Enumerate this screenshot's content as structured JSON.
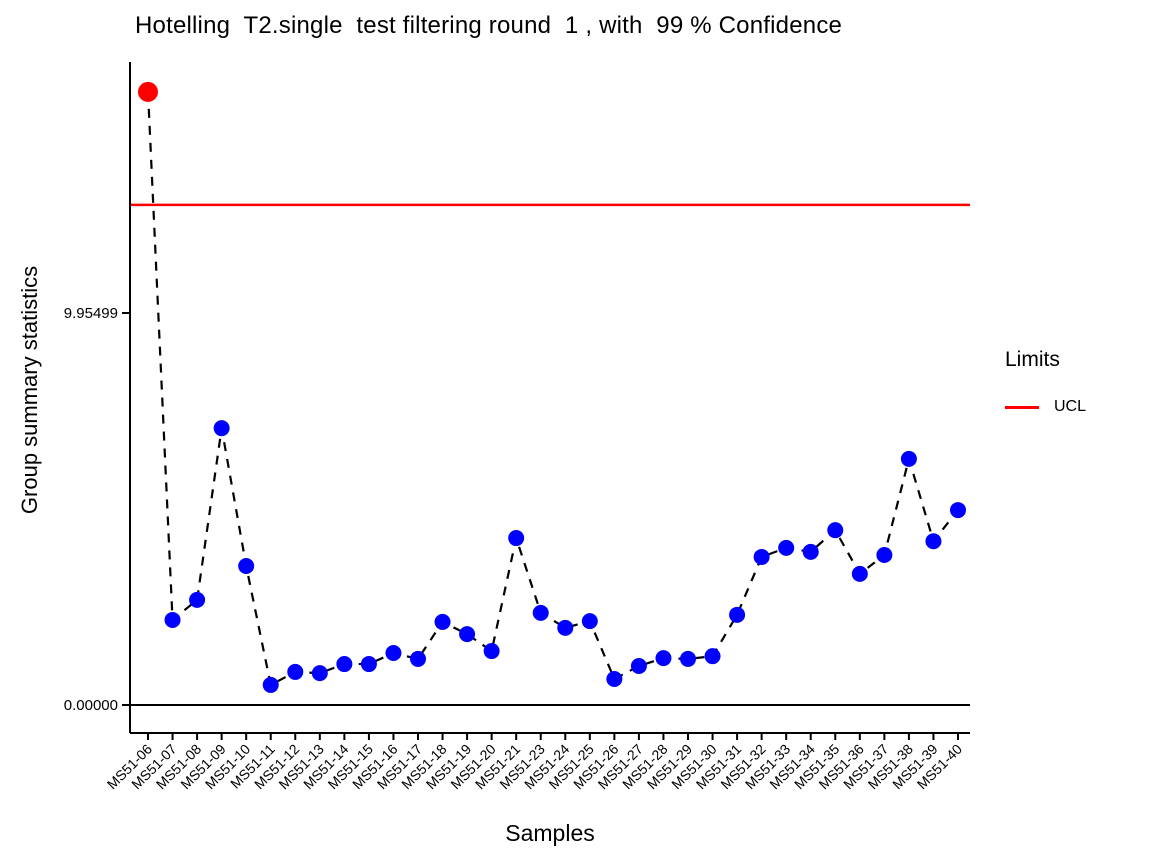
{
  "title": "Hotelling  T2.single  test filtering round  1 , with  99 % Confidence",
  "ylabel": "Group summary statistics",
  "xlabel": "Samples",
  "legend": {
    "title": "Limits",
    "entries": [
      {
        "label": "UCL",
        "color": "#FF0000"
      }
    ]
  },
  "chart_data": {
    "type": "line",
    "title": "Hotelling  T2.single  test filtering round  1 , with  99 % Confidence",
    "xlabel": "Samples",
    "ylabel": "Group summary statistics",
    "categories": [
      "MS51-06",
      "MS51-07",
      "MS51-08",
      "MS51-09",
      "MS51-10",
      "MS51-11",
      "MS51-12",
      "MS51-13",
      "MS51-14",
      "MS51-15",
      "MS51-16",
      "MS51-17",
      "MS51-18",
      "MS51-19",
      "MS51-20",
      "MS51-21",
      "MS51-23",
      "MS51-24",
      "MS51-25",
      "MS51-26",
      "MS51-27",
      "MS51-28",
      "MS51-29",
      "MS51-30",
      "MS51-31",
      "MS51-32",
      "MS51-33",
      "MS51-34",
      "MS51-35",
      "MS51-36",
      "MS51-37",
      "MS51-38",
      "MS51-39",
      "MS51-40"
    ],
    "values": [
      15.57,
      2.16,
      2.67,
      7.03,
      3.53,
      0.51,
      0.84,
      0.81,
      1.04,
      1.04,
      1.32,
      1.17,
      2.11,
      1.8,
      1.37,
      4.24,
      2.34,
      1.96,
      2.13,
      0.66,
      0.99,
      1.19,
      1.17,
      1.24,
      2.29,
      3.76,
      3.99,
      3.89,
      4.44,
      3.33,
      3.81,
      6.25,
      4.16,
      4.95
    ],
    "out_of_control_indices": [
      0
    ],
    "ucl": 12.7,
    "lcl": 0.0,
    "yticks": [
      {
        "value": 9.95499,
        "label": "9.95499"
      },
      {
        "value": 0.0,
        "label": "0.00000"
      }
    ],
    "ylim": [
      -0.71,
      16.33
    ],
    "line_style": "dashed",
    "point_color": "#0000FF",
    "out_color": "#FF0000",
    "ucl_color": "#FF0000",
    "grid": false,
    "legend_position": "right"
  }
}
